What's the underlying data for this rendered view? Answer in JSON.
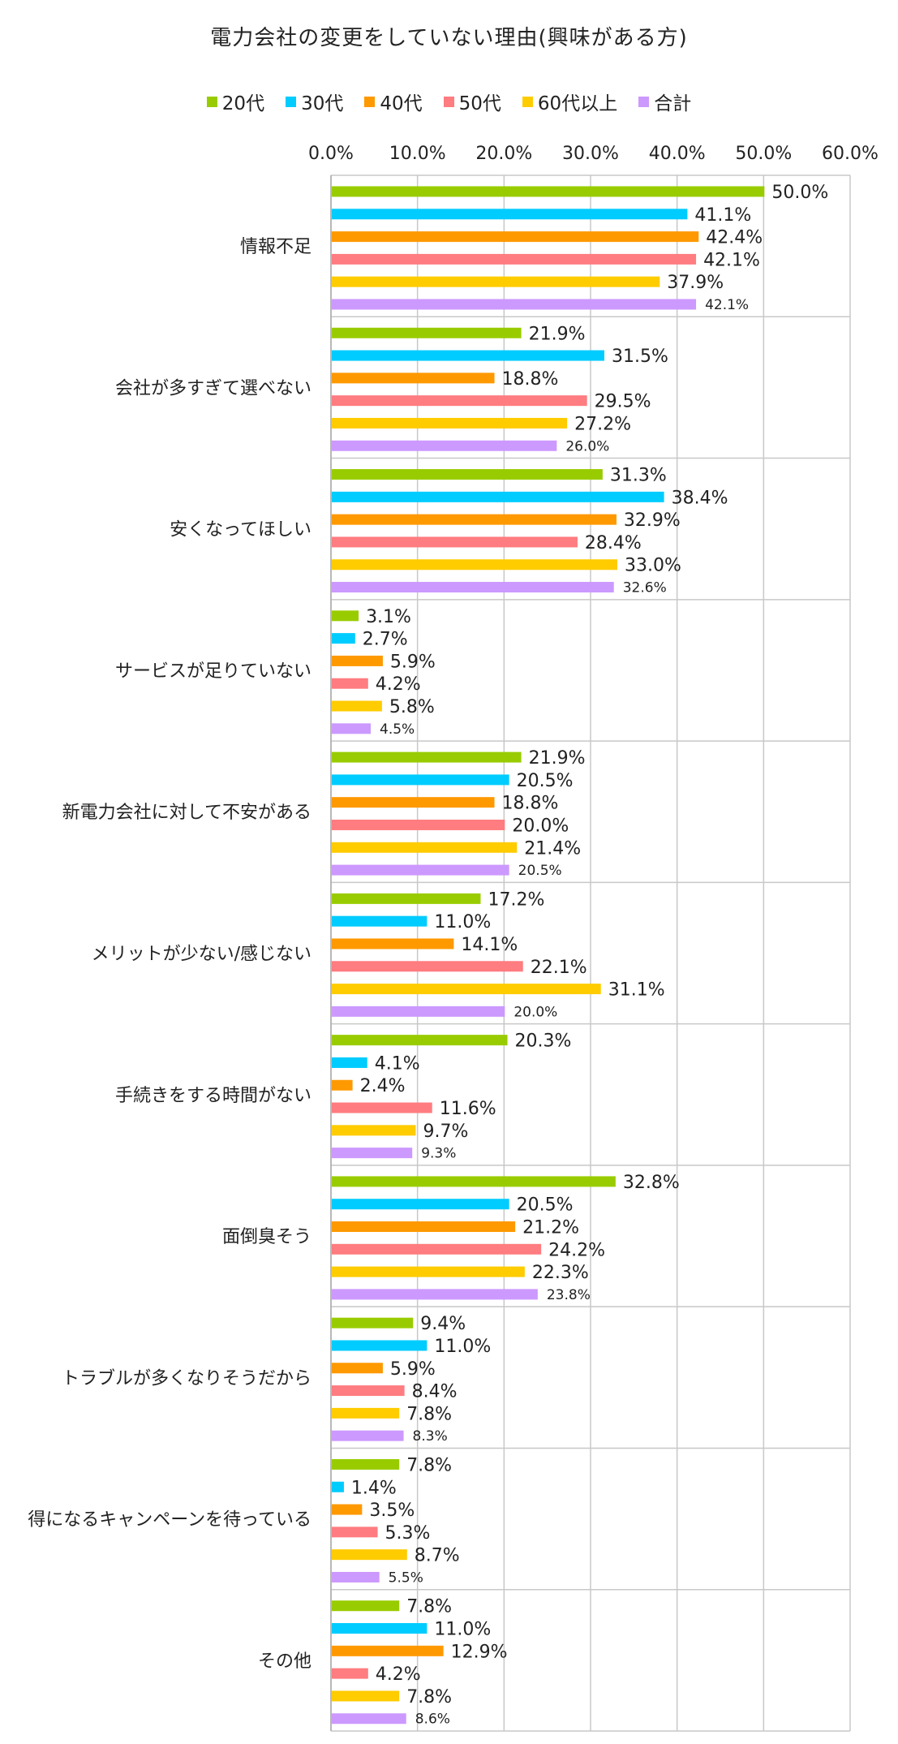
{
  "chart_data": {
    "type": "bar",
    "orientation": "horizontal",
    "title": "電力会社の変更をしていない理由(興味がある方)",
    "xlim": [
      0,
      60
    ],
    "x_ticks": [
      "0.0%",
      "10.0%",
      "20.0%",
      "30.0%",
      "40.0%",
      "50.0%",
      "60.0%"
    ],
    "legend_position": "top",
    "grid": true,
    "categories": [
      "情報不足",
      "会社が多すぎて選べない",
      "安くなってほしい",
      "サービスが足りていない",
      "新電力会社に対して不安がある",
      "メリットが少ない/感じない",
      "手続きをする時間がない",
      "面倒臭そう",
      "トラブルが多くなりそうだから",
      "得になるキャンペーンを待っている",
      "その他"
    ],
    "series": [
      {
        "name": "20代",
        "color": "#99cc00",
        "values": [
          50.0,
          21.9,
          31.3,
          3.1,
          21.9,
          17.2,
          20.3,
          32.8,
          9.4,
          7.8,
          7.8
        ],
        "labels": [
          "50.0%",
          "21.9%",
          "31.3%",
          "3.1%",
          "21.9%",
          "17.2%",
          "20.3%",
          "32.8%",
          "9.4%",
          "7.8%",
          "7.8%"
        ]
      },
      {
        "name": "30代",
        "color": "#00ccff",
        "values": [
          41.1,
          31.5,
          38.4,
          2.7,
          20.5,
          11.0,
          4.1,
          20.5,
          11.0,
          1.4,
          11.0
        ],
        "labels": [
          "41.1%",
          "31.5%",
          "38.4%",
          "2.7%",
          "20.5%",
          "11.0%",
          "4.1%",
          "20.5%",
          "11.0%",
          "1.4%",
          "11.0%"
        ]
      },
      {
        "name": "40代",
        "color": "#ff9900",
        "values": [
          42.4,
          18.8,
          32.9,
          5.9,
          18.8,
          14.1,
          2.4,
          21.2,
          5.9,
          3.5,
          12.9
        ],
        "labels": [
          "42.4%",
          "18.8%",
          "32.9%",
          "5.9%",
          "18.8%",
          "14.1%",
          "2.4%",
          "21.2%",
          "5.9%",
          "3.5%",
          "12.9%"
        ]
      },
      {
        "name": "50代",
        "color": "#ff7c80",
        "values": [
          42.1,
          29.5,
          28.4,
          4.2,
          20.0,
          22.1,
          11.6,
          24.2,
          8.4,
          5.3,
          4.2
        ],
        "labels": [
          "42.1%",
          "29.5%",
          "28.4%",
          "4.2%",
          "20.0%",
          "22.1%",
          "11.6%",
          "24.2%",
          "8.4%",
          "5.3%",
          "4.2%"
        ]
      },
      {
        "name": "60代以上",
        "color": "#ffcc00",
        "values": [
          37.9,
          27.2,
          33.0,
          5.8,
          21.4,
          31.1,
          9.7,
          22.3,
          7.8,
          8.7,
          7.8
        ],
        "labels": [
          "37.9%",
          "27.2%",
          "33.0%",
          "5.8%",
          "21.4%",
          "31.1%",
          "9.7%",
          "22.3%",
          "7.8%",
          "8.7%",
          "7.8%"
        ]
      },
      {
        "name": "合計",
        "color": "#cc99ff",
        "values": [
          42.1,
          26.0,
          32.6,
          4.5,
          20.5,
          20.0,
          9.3,
          23.8,
          8.3,
          5.5,
          8.6
        ],
        "labels": [
          "42.1%",
          "26.0%",
          "32.6%",
          "4.5%",
          "20.5%",
          "20.0%",
          "9.3%",
          "23.8%",
          "8.3%",
          "5.5%",
          "8.6%"
        ]
      }
    ]
  }
}
